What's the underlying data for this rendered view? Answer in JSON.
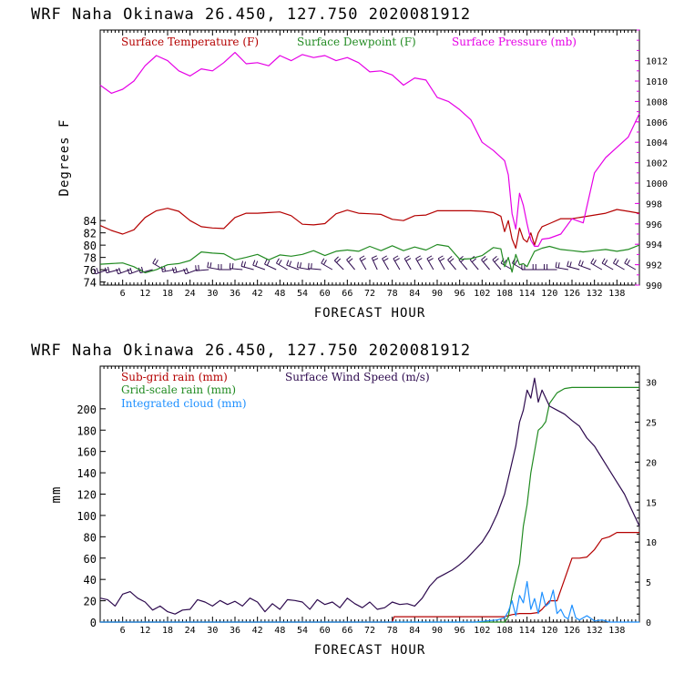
{
  "colors": {
    "temperature": "#b40000",
    "dewpoint": "#228b22",
    "pressure": "#e600e6",
    "subgrid": "#b40000",
    "gridscale": "#228b22",
    "cloud": "#1e90ff",
    "wind": "#2d0a4e",
    "barb": "#2d0a4e"
  },
  "chart_data": [
    {
      "type": "line",
      "title": "WRF   Naha Okinawa  26.450, 127.750  2020081912",
      "xlabel": "FORECAST HOUR",
      "ylabel": "Degrees F",
      "y2label": "",
      "xlim": [
        0,
        144
      ],
      "ylim": [
        73.5,
        115
      ],
      "y2lim": [
        990,
        1015
      ],
      "x_ticks": [
        "6",
        "12",
        "18",
        "24",
        "30",
        "36",
        "42",
        "48",
        "54",
        "60",
        "66",
        "72",
        "78",
        "84",
        "90",
        "96",
        "102",
        "108",
        "114",
        "120",
        "126",
        "132",
        "138"
      ],
      "y_ticks": [
        "74",
        "76",
        "78",
        "80",
        "82",
        "84"
      ],
      "y2_ticks": [
        "990",
        "992",
        "994",
        "996",
        "998",
        "1000",
        "1002",
        "1004",
        "1006",
        "1008",
        "1010",
        "1012"
      ],
      "wind_barbs_label": "",
      "series": [
        {
          "name": "Surface Temperature (F)",
          "axis": "left",
          "x": [
            0,
            3,
            6,
            9,
            12,
            15,
            18,
            21,
            24,
            27,
            30,
            33,
            36,
            39,
            42,
            45,
            48,
            51,
            54,
            57,
            60,
            63,
            66,
            69,
            72,
            75,
            78,
            81,
            84,
            87,
            90,
            93,
            96,
            99,
            102,
            105,
            107,
            108,
            109,
            110,
            111,
            112,
            113,
            114,
            115,
            116,
            117,
            118,
            120,
            123,
            126,
            129,
            132,
            135,
            138,
            141,
            144
          ],
          "y": [
            83.2,
            82.4,
            81.8,
            82.5,
            84.5,
            85.6,
            86.0,
            85.5,
            84.0,
            83.0,
            82.8,
            82.7,
            84.5,
            85.2,
            85.2,
            85.3,
            85.4,
            84.8,
            83.4,
            83.3,
            83.5,
            85.1,
            85.7,
            85.2,
            85.1,
            85.0,
            84.2,
            84.0,
            84.8,
            84.9,
            85.6,
            85.6,
            85.6,
            85.6,
            85.5,
            85.3,
            84.7,
            82.2,
            84.0,
            81.0,
            79.5,
            82.8,
            81.0,
            80.5,
            82.0,
            80.0,
            82.0,
            83.0,
            83.5,
            84.3,
            84.3,
            84.6,
            84.9,
            85.2,
            85.8,
            85.5,
            85.2
          ]
        },
        {
          "name": "Surface Dewpoint (F)",
          "axis": "left",
          "x": [
            0,
            3,
            6,
            9,
            12,
            15,
            18,
            21,
            24,
            27,
            30,
            33,
            36,
            39,
            42,
            45,
            48,
            51,
            54,
            57,
            60,
            63,
            66,
            69,
            72,
            75,
            78,
            81,
            84,
            87,
            90,
            93,
            96,
            99,
            102,
            105,
            107,
            108,
            109,
            110,
            111,
            112,
            113,
            114,
            115,
            116,
            118,
            120,
            123,
            126,
            129,
            132,
            135,
            138,
            141,
            144
          ],
          "y": [
            76.9,
            77.0,
            77.1,
            76.5,
            75.5,
            76.0,
            76.8,
            77.0,
            77.5,
            78.9,
            78.7,
            78.6,
            77.6,
            78.0,
            78.5,
            77.6,
            78.4,
            78.2,
            78.5,
            79.1,
            78.3,
            79.0,
            79.2,
            79.0,
            79.8,
            79.1,
            79.9,
            79.1,
            79.7,
            79.2,
            80.1,
            79.8,
            77.7,
            77.8,
            78.3,
            79.6,
            79.4,
            76.5,
            78.0,
            75.6,
            78.5,
            76.8,
            77.0,
            76.5,
            77.8,
            79.0,
            79.5,
            79.8,
            79.3,
            79.1,
            78.9,
            79.1,
            79.3,
            79.0,
            79.3,
            80.0
          ]
        },
        {
          "name": "Surface Pressure (mb)",
          "axis": "right",
          "x": [
            0,
            3,
            6,
            9,
            12,
            15,
            18,
            21,
            24,
            27,
            30,
            33,
            36,
            39,
            42,
            45,
            48,
            51,
            54,
            57,
            60,
            63,
            66,
            69,
            72,
            75,
            78,
            81,
            84,
            87,
            90,
            93,
            96,
            99,
            102,
            105,
            108,
            109,
            110,
            111,
            112,
            113,
            114,
            115,
            116,
            117,
            118,
            120,
            123,
            126,
            129,
            132,
            135,
            138,
            141,
            144
          ],
          "y": [
            1009.6,
            1008.8,
            1009.2,
            1010.0,
            1011.5,
            1012.5,
            1012.0,
            1011.0,
            1010.5,
            1011.2,
            1011.0,
            1011.8,
            1012.8,
            1011.7,
            1011.8,
            1011.5,
            1012.5,
            1012.0,
            1012.6,
            1012.3,
            1012.5,
            1012.0,
            1012.3,
            1011.8,
            1010.9,
            1011.0,
            1010.6,
            1009.6,
            1010.3,
            1010.1,
            1008.4,
            1008.0,
            1007.2,
            1006.2,
            1004.0,
            1003.2,
            1002.2,
            1000.8,
            997.0,
            995.5,
            999.0,
            997.8,
            996.0,
            994.4,
            993.8,
            993.8,
            994.5,
            994.6,
            995.0,
            996.5,
            996.1,
            1001.0,
            1002.5,
            1003.5,
            1004.5,
            1006.8
          ]
        }
      ],
      "wind_barbs": {
        "x": [
          2,
          5,
          8,
          11,
          14,
          17,
          20,
          23,
          26,
          29,
          32,
          35,
          38,
          41,
          44,
          47,
          50,
          53,
          56,
          59,
          62,
          65,
          68,
          71,
          74,
          77,
          80,
          83,
          86,
          89,
          92,
          95,
          98,
          101,
          104,
          107,
          110,
          113,
          116,
          119,
          122,
          125,
          128,
          131,
          134,
          137,
          140,
          143
        ],
        "dir_deg": [
          250,
          255,
          250,
          250,
          255,
          300,
          260,
          255,
          250,
          265,
          280,
          270,
          275,
          285,
          290,
          295,
          300,
          290,
          280,
          275,
          300,
          315,
          320,
          330,
          335,
          330,
          330,
          330,
          330,
          330,
          330,
          320,
          320,
          320,
          320,
          320,
          300,
          300,
          270,
          270,
          270,
          280,
          285,
          290,
          300,
          300,
          300,
          300
        ]
      }
    },
    {
      "type": "line",
      "title": "WRF   Naha Okinawa  26.450, 127.750  2020081912",
      "xlabel": "FORECAST HOUR",
      "ylabel": "mm",
      "xlim": [
        0,
        144
      ],
      "ylim": [
        0,
        240
      ],
      "y2lim": [
        0,
        32
      ],
      "x_ticks": [
        "6",
        "12",
        "18",
        "24",
        "30",
        "36",
        "42",
        "48",
        "54",
        "60",
        "66",
        "72",
        "78",
        "84",
        "90",
        "96",
        "102",
        "108",
        "114",
        "120",
        "126",
        "132",
        "138"
      ],
      "y_ticks": [
        "0",
        "20",
        "40",
        "60",
        "80",
        "100",
        "120",
        "140",
        "160",
        "180",
        "200"
      ],
      "y2_ticks": [
        "0",
        "5",
        "10",
        "15",
        "20",
        "25",
        "30"
      ],
      "series": [
        {
          "name": "Sub-grid rain (mm)",
          "axis": "left",
          "x": [
            0,
            78,
            78.5,
            108,
            110,
            112,
            115,
            117,
            118,
            120,
            121,
            122,
            124,
            126,
            128,
            130,
            132,
            134,
            136,
            138,
            140,
            144
          ],
          "y": [
            0,
            0,
            5,
            5,
            7,
            8,
            8,
            9,
            12,
            20,
            20,
            20,
            40,
            60,
            60,
            61,
            68,
            78,
            80,
            84,
            84,
            84
          ]
        },
        {
          "name": "Grid-scale rain (mm)",
          "axis": "left",
          "x": [
            0,
            108,
            109,
            110,
            111,
            112,
            113,
            114,
            115,
            116,
            117,
            118,
            119,
            120,
            122,
            124,
            126,
            130,
            135,
            140,
            144
          ],
          "y": [
            0,
            0,
            5,
            25,
            40,
            55,
            90,
            110,
            140,
            160,
            180,
            183,
            188,
            205,
            215,
            219,
            220,
            220,
            220,
            220,
            220
          ]
        },
        {
          "name": "Integrated cloud (mm)",
          "axis": "left",
          "x": [
            0,
            100,
            106,
            108,
            109,
            110,
            111,
            112,
            113,
            114,
            115,
            116,
            117,
            118,
            119,
            120,
            121,
            122,
            123,
            124,
            125,
            126,
            127,
            128,
            130,
            132,
            134,
            136,
            144
          ],
          "y": [
            0,
            0,
            2,
            4,
            10,
            20,
            6,
            25,
            18,
            38,
            12,
            22,
            8,
            28,
            15,
            18,
            30,
            8,
            12,
            5,
            3,
            16,
            4,
            2,
            6,
            1,
            2,
            0,
            0
          ]
        },
        {
          "name": "Surface Wind Speed (m/s)",
          "axis": "right",
          "x": [
            0,
            2,
            4,
            6,
            8,
            10,
            12,
            14,
            16,
            18,
            20,
            22,
            24,
            26,
            28,
            30,
            32,
            34,
            36,
            38,
            40,
            42,
            44,
            46,
            48,
            50,
            52,
            54,
            56,
            58,
            60,
            62,
            64,
            66,
            68,
            70,
            72,
            74,
            76,
            78,
            80,
            82,
            84,
            86,
            88,
            90,
            92,
            94,
            96,
            98,
            100,
            102,
            104,
            106,
            108,
            110,
            111,
            112,
            113,
            114,
            115,
            116,
            117,
            118,
            120,
            122,
            124,
            126,
            128,
            130,
            132,
            134,
            136,
            138,
            140,
            142,
            144
          ],
          "y": [
            3.0,
            2.8,
            2.0,
            3.5,
            3.8,
            3.0,
            2.5,
            1.5,
            2.0,
            1.3,
            1.0,
            1.5,
            1.6,
            2.8,
            2.5,
            2.0,
            2.7,
            2.2,
            2.6,
            2.0,
            3.0,
            2.5,
            1.3,
            2.3,
            1.6,
            2.8,
            2.7,
            2.5,
            1.6,
            2.8,
            2.2,
            2.5,
            1.8,
            3.0,
            2.3,
            1.8,
            2.5,
            1.6,
            1.8,
            2.5,
            2.2,
            2.3,
            2.0,
            3.0,
            4.5,
            5.5,
            6.0,
            6.5,
            7.2,
            8.0,
            9.0,
            10.0,
            11.5,
            13.5,
            16.0,
            20.0,
            22.0,
            25.0,
            26.5,
            29.0,
            28.0,
            30.5,
            27.5,
            29.0,
            27.0,
            26.5,
            26.0,
            25.2,
            24.5,
            23.0,
            22.0,
            20.5,
            19.0,
            17.5,
            16.0,
            14.0,
            12.0
          ]
        }
      ]
    }
  ]
}
